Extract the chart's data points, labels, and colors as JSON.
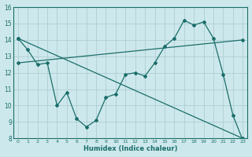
{
  "xlabel": "Humidex (Indice chaleur)",
  "ylabel": "",
  "bg_color": "#cde8ec",
  "grid_color": "#aecdd2",
  "line_color": "#1a6e6a",
  "xlim": [
    -0.5,
    23.5
  ],
  "ylim": [
    8,
    16
  ],
  "xticks": [
    0,
    1,
    2,
    3,
    4,
    5,
    6,
    7,
    8,
    9,
    10,
    11,
    12,
    13,
    14,
    15,
    16,
    17,
    18,
    19,
    20,
    21,
    22,
    23
  ],
  "yticks": [
    8,
    9,
    10,
    11,
    12,
    13,
    14,
    15,
    16
  ],
  "line1_x": [
    0,
    1,
    2,
    3,
    4,
    5,
    6,
    7,
    8,
    9,
    10,
    11,
    12,
    13,
    14,
    15,
    16,
    17,
    18,
    19,
    20,
    21,
    22,
    23
  ],
  "line1_y": [
    14.1,
    13.4,
    12.5,
    12.6,
    10.0,
    10.8,
    9.2,
    8.7,
    9.1,
    10.5,
    10.7,
    11.9,
    12.0,
    11.8,
    12.6,
    13.6,
    14.1,
    15.2,
    14.9,
    15.1,
    14.1,
    11.9,
    9.4,
    7.9
  ],
  "line2_x": [
    0,
    23
  ],
  "line2_y": [
    14.1,
    8.0
  ],
  "line3_x": [
    0,
    23
  ],
  "line3_y": [
    12.6,
    14.0
  ]
}
